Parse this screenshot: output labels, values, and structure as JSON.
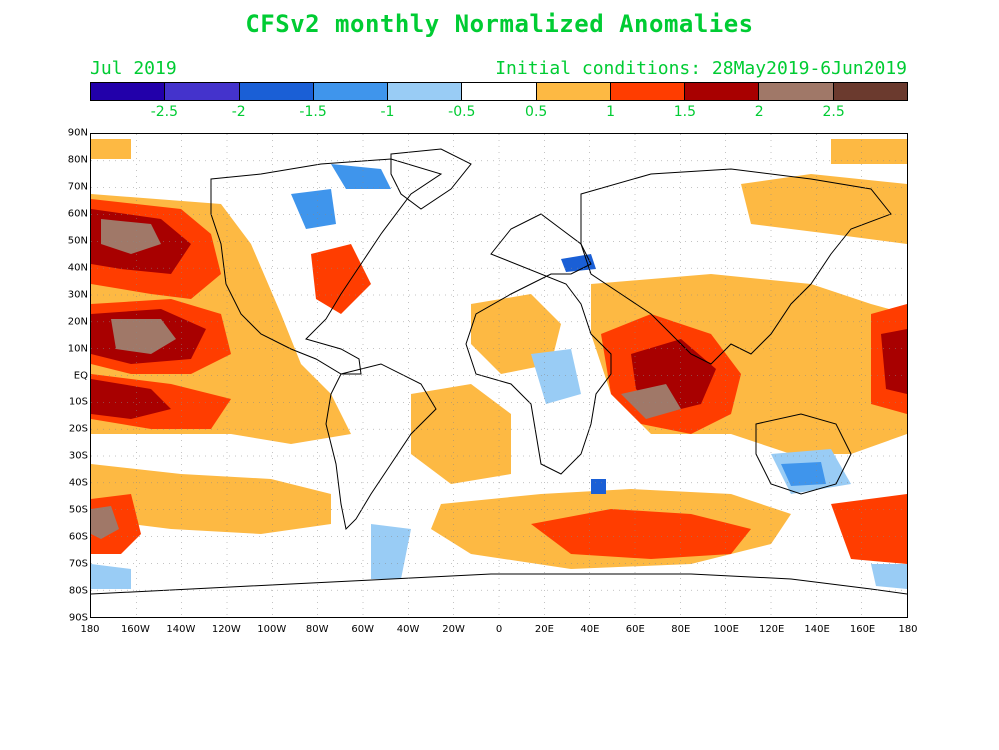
{
  "header": {
    "title": "CFSv2 monthly Normalized Anomalies",
    "month": "Jul 2019",
    "initial_conditions": "Initial conditions: 28May2019-6Jun2019"
  },
  "colorbar": {
    "colors": [
      "#2200aa",
      "#4433cc",
      "#1a5fd6",
      "#3f95ec",
      "#99ccf5",
      "#ffffff",
      "#fdb943",
      "#ff3d00",
      "#a80000",
      "#a07868",
      "#6b3a2e"
    ],
    "labels": [
      "-2.5",
      "-2",
      "-1.5",
      "-1",
      "-0.5",
      "0.5",
      "1",
      "1.5",
      "2",
      "2.5"
    ]
  },
  "axes": {
    "lat_labels": [
      "90N",
      "80N",
      "70N",
      "60N",
      "50N",
      "40N",
      "30N",
      "20N",
      "10N",
      "EQ",
      "10S",
      "20S",
      "30S",
      "40S",
      "50S",
      "60S",
      "70S",
      "80S",
      "90S"
    ],
    "lon_labels": [
      "180",
      "160W",
      "140W",
      "120W",
      "100W",
      "80W",
      "60W",
      "40W",
      "20W",
      "0",
      "20E",
      "40E",
      "60E",
      "80E",
      "100E",
      "120E",
      "140E",
      "160E",
      "180"
    ]
  }
}
